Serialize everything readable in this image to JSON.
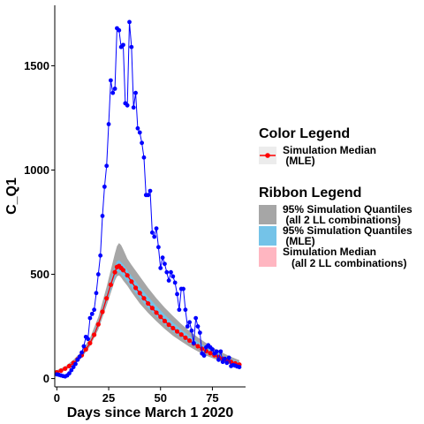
{
  "chart_data": {
    "type": "line",
    "xlabel": "Days since March 1 2020",
    "ylabel": "C_Q1",
    "xlim": [
      -1,
      91
    ],
    "ylim": [
      -40,
      1790
    ],
    "x_ticks": [
      0,
      25,
      50,
      75
    ],
    "y_ticks": [
      0,
      500,
      1000,
      1500
    ],
    "grid": false,
    "legend_position": "right",
    "colors": {
      "observed": "#0000ff",
      "median_mle": "#ff0000",
      "ribbon_all_ll": "#a6a6a6",
      "ribbon_mle": "#74c3e8",
      "ribbon_median_all_ll": "#ffb6c1"
    },
    "observed": {
      "x": [
        0,
        1,
        2,
        3,
        4,
        5,
        6,
        7,
        8,
        9,
        10,
        11,
        12,
        13,
        14,
        15,
        16,
        17,
        18,
        19,
        20,
        21,
        22,
        23,
        24,
        25,
        26,
        27,
        28,
        29,
        30,
        31,
        32,
        33,
        34,
        35,
        36,
        37,
        38,
        39,
        40,
        41,
        42,
        43,
        44,
        45,
        46,
        47,
        48,
        49,
        50,
        51,
        52,
        53,
        54,
        55,
        56,
        57,
        58,
        59,
        60,
        61,
        62,
        63,
        64,
        65,
        66,
        67,
        68,
        69,
        70,
        71,
        72,
        73,
        74,
        75,
        76,
        77,
        78,
        79,
        80,
        81,
        82,
        83,
        84,
        85,
        86,
        87,
        88
      ],
      "values": [
        20,
        18,
        15,
        12,
        10,
        15,
        25,
        40,
        55,
        70,
        90,
        105,
        125,
        155,
        200,
        190,
        290,
        310,
        330,
        410,
        500,
        590,
        780,
        920,
        1020,
        1220,
        1430,
        1370,
        1390,
        1680,
        1670,
        1590,
        1600,
        1320,
        1310,
        1710,
        1590,
        1300,
        1370,
        1200,
        1180,
        1130,
        1060,
        880,
        880,
        900,
        700,
        680,
        720,
        630,
        530,
        580,
        550,
        510,
        470,
        510,
        490,
        460,
        405,
        330,
        430,
        430,
        330,
        250,
        270,
        230,
        170,
        290,
        250,
        220,
        120,
        110,
        150,
        160,
        150,
        140,
        120,
        130,
        90,
        130,
        80,
        95,
        75,
        100,
        60,
        65,
        62,
        58,
        55
      ]
    },
    "series": [
      {
        "name": "Simulation Median\n(MLE)",
        "x": [
          0,
          2,
          4,
          6,
          8,
          10,
          12,
          14,
          16,
          18,
          20,
          22,
          24,
          26,
          28,
          29,
          30,
          31,
          32,
          34,
          36,
          38,
          40,
          42,
          44,
          46,
          48,
          50,
          52,
          54,
          56,
          58,
          60,
          62,
          64,
          66,
          68,
          70,
          72,
          74,
          76,
          78,
          80,
          82,
          84,
          86,
          88
        ],
        "values": [
          30,
          38,
          48,
          60,
          75,
          92,
          112,
          140,
          170,
          210,
          260,
          320,
          385,
          450,
          510,
          535,
          540,
          530,
          520,
          495,
          465,
          435,
          410,
          385,
          360,
          338,
          316,
          296,
          276,
          258,
          242,
          226,
          211,
          196,
          182,
          168,
          155,
          143,
          132,
          122,
          112,
          103,
          95,
          87,
          80,
          73,
          67
        ]
      }
    ],
    "ribbons": [
      {
        "name": "95% Simulation Quantiles\n(all 2 LL combinations)",
        "x": [
          0,
          4,
          8,
          12,
          16,
          20,
          24,
          26,
          28,
          29,
          30,
          31,
          32,
          34,
          36,
          40,
          44,
          48,
          52,
          56,
          60,
          64,
          68,
          72,
          76,
          80,
          84,
          88
        ],
        "lower": [
          25,
          40,
          65,
          100,
          155,
          235,
          350,
          410,
          470,
          490,
          495,
          485,
          470,
          445,
          415,
          360,
          315,
          275,
          238,
          205,
          178,
          152,
          130,
          110,
          94,
          80,
          68,
          58
        ],
        "upper": [
          40,
          58,
          90,
          130,
          195,
          295,
          440,
          520,
          600,
          635,
          650,
          640,
          620,
          575,
          545,
          490,
          435,
          385,
          340,
          300,
          262,
          228,
          198,
          170,
          145,
          123,
          104,
          88
        ]
      },
      {
        "name": "95% Simulation Quantiles\n(MLE)",
        "x": [
          0,
          4,
          8,
          12,
          16,
          20,
          24,
          26,
          28,
          29,
          30,
          31,
          32,
          34,
          36,
          40,
          44,
          48,
          52,
          56,
          60,
          64,
          68,
          72,
          76,
          80,
          84,
          88
        ],
        "lower": [
          27,
          43,
          70,
          105,
          162,
          245,
          365,
          425,
          482,
          505,
          510,
          500,
          490,
          465,
          435,
          385,
          338,
          298,
          260,
          225,
          196,
          168,
          145,
          123,
          105,
          89,
          76,
          64
        ],
        "upper": [
          34,
          52,
          80,
          118,
          178,
          272,
          405,
          472,
          538,
          562,
          568,
          558,
          548,
          520,
          492,
          440,
          392,
          348,
          306,
          268,
          235,
          204,
          176,
          151,
          130,
          110,
          94,
          80
        ]
      }
    ],
    "legend": {
      "color_title": "Color  Legend",
      "color_items": [
        {
          "label_line1": "Simulation Median",
          "label_line2": " (MLE)",
          "color": "#ff0000"
        }
      ],
      "ribbon_title": "Ribbon  Legend",
      "ribbon_items": [
        {
          "label_line1": "95% Simulation Quantiles",
          "label_line2": " (all 2 LL combinations)",
          "color": "#a6a6a6"
        },
        {
          "label_line1": "95% Simulation Quantiles",
          "label_line2": " (MLE)",
          "color": "#74c3e8"
        },
        {
          "label_line1": "Simulation Median",
          "label_line2": "   (all 2 LL combinations)",
          "color": "#ffb6c1"
        }
      ]
    }
  }
}
